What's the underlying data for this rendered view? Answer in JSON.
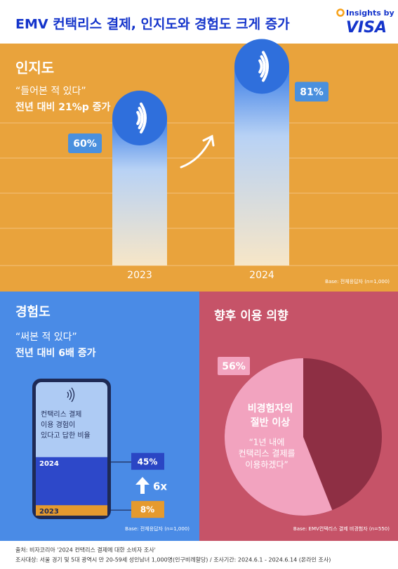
{
  "header": {
    "title": "EMV 컨택리스 결제, 인지도와 경험도 크게 증가",
    "logo_top": "Insights by",
    "logo_brand": "VISA"
  },
  "awareness": {
    "heading": "인지도",
    "quote": "“들어본 적 있다”",
    "summary": "전년 대비 21%p 증가",
    "categories": [
      "2023",
      "2024"
    ],
    "values": [
      60,
      81
    ],
    "value_labels": [
      "60%",
      "81%"
    ],
    "base": "Base: 전체응답자 (n=1,000)"
  },
  "experience": {
    "heading": "경험도",
    "quote": "“써본 적 있다”",
    "summary": "전년 대비 6배 증가",
    "screen_text": [
      "컨택리스 결제",
      "이용 경험이",
      "있다고 답한 비율"
    ],
    "categories": [
      "2024",
      "2023"
    ],
    "values": [
      45,
      8
    ],
    "value_labels": [
      "45%",
      "8%"
    ],
    "multiplier": "6x",
    "base": "Base: 전체응답자 (n=1,000)"
  },
  "intention": {
    "heading": "향후 이용 의향",
    "value": 56,
    "value_label": "56%",
    "highlight": [
      "비경험자의",
      "절반 이상"
    ],
    "quote": [
      "“1년 내에",
      "컨택리스 결제를",
      "이용하겠다”"
    ],
    "base": "Base: EMV컨택리스 결제 비경험자 (n=550)"
  },
  "footer": [
    "출처: 비자코리아 '2024 컨택리스 결제에 대한 소비자 조사'",
    "조사대상: 서울 경기 및 5대 광역시 만 20-59세 성인남녀 1,000명(인구비례할당) / 조사기간: 2024.6.1 - 2024.6.14 (온라인 조사)"
  ]
}
